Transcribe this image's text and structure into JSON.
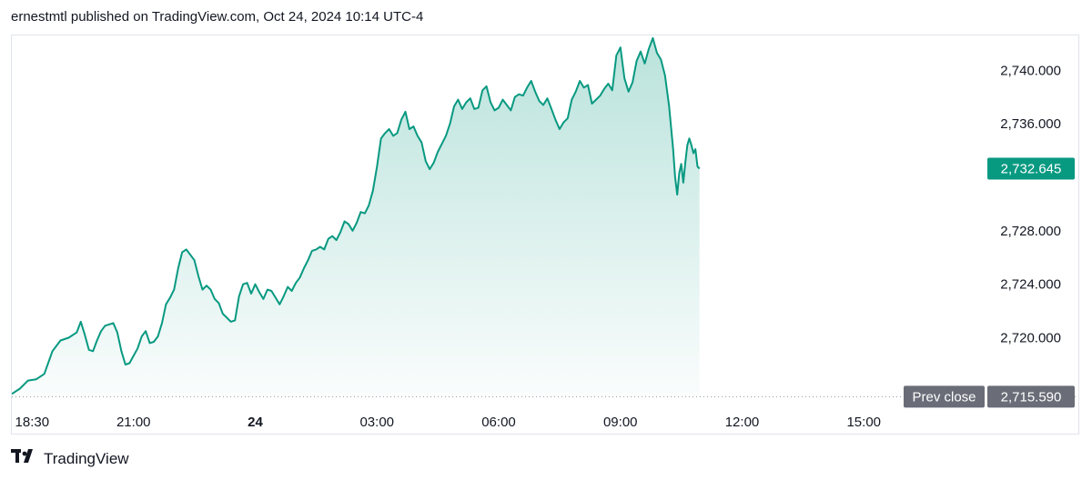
{
  "header": {
    "published_text": "ernestmtl published on TradingView.com, Oct 24, 2024 10:14 UTC-4"
  },
  "footer": {
    "brand": "TradingView",
    "logo_icon": "tradingview-logo-icon"
  },
  "colors": {
    "line": "#089981",
    "fill_top": "#089981",
    "badge_current": "#089981",
    "badge_prev": "#6a6d78",
    "dotted": "#9598a1",
    "border": "#e0e3eb"
  },
  "chart_data": {
    "type": "area",
    "title": "",
    "xlabel": "",
    "ylabel": "",
    "x_range": [
      18.0,
      42.0
    ],
    "ylim": [
      2714.6,
      2742.6
    ],
    "y_ticks": [
      {
        "value": 2720,
        "label": "2,720.000"
      },
      {
        "value": 2724,
        "label": "2,724.000"
      },
      {
        "value": 2728,
        "label": "2,728.000"
      },
      {
        "value": 2736,
        "label": "2,736.000"
      },
      {
        "value": 2740,
        "label": "2,740.000"
      }
    ],
    "x_ticks": [
      {
        "value": 18.5,
        "label": "18:30",
        "bold": false
      },
      {
        "value": 21.0,
        "label": "21:00",
        "bold": false
      },
      {
        "value": 24.0,
        "label": "24",
        "bold": true
      },
      {
        "value": 27.0,
        "label": "03:00",
        "bold": false
      },
      {
        "value": 30.0,
        "label": "06:00",
        "bold": false
      },
      {
        "value": 33.0,
        "label": "09:00",
        "bold": false
      },
      {
        "value": 36.0,
        "label": "12:00",
        "bold": false
      },
      {
        "value": 39.0,
        "label": "15:00",
        "bold": false
      }
    ],
    "current_price": {
      "value": 2732.645,
      "label": "2,732.645"
    },
    "prev_close": {
      "value": 2715.59,
      "label": "2,715.590",
      "name": "Prev close"
    },
    "grid": false,
    "series": [
      {
        "points": [
          [
            18.0,
            2715.8
          ],
          [
            18.2,
            2716.2
          ],
          [
            18.4,
            2716.8
          ],
          [
            18.6,
            2716.9
          ],
          [
            18.8,
            2717.3
          ],
          [
            19.0,
            2719.0
          ],
          [
            19.2,
            2719.8
          ],
          [
            19.4,
            2720.0
          ],
          [
            19.6,
            2720.4
          ],
          [
            19.7,
            2721.2
          ],
          [
            19.8,
            2720.2
          ],
          [
            19.9,
            2719.1
          ],
          [
            20.0,
            2719.0
          ],
          [
            20.1,
            2719.8
          ],
          [
            20.2,
            2720.5
          ],
          [
            20.3,
            2720.9
          ],
          [
            20.5,
            2721.1
          ],
          [
            20.6,
            2720.4
          ],
          [
            20.7,
            2719.0
          ],
          [
            20.8,
            2718.0
          ],
          [
            20.9,
            2718.1
          ],
          [
            21.1,
            2719.2
          ],
          [
            21.2,
            2720.1
          ],
          [
            21.3,
            2720.5
          ],
          [
            21.4,
            2719.6
          ],
          [
            21.5,
            2719.7
          ],
          [
            21.6,
            2720.1
          ],
          [
            21.7,
            2721.1
          ],
          [
            21.8,
            2722.5
          ],
          [
            21.9,
            2723.0
          ],
          [
            22.0,
            2723.6
          ],
          [
            22.1,
            2725.2
          ],
          [
            22.2,
            2726.4
          ],
          [
            22.3,
            2726.6
          ],
          [
            22.4,
            2726.2
          ],
          [
            22.5,
            2725.8
          ],
          [
            22.6,
            2724.6
          ],
          [
            22.7,
            2723.6
          ],
          [
            22.8,
            2723.9
          ],
          [
            22.9,
            2723.6
          ],
          [
            23.0,
            2722.9
          ],
          [
            23.1,
            2722.6
          ],
          [
            23.2,
            2721.8
          ],
          [
            23.3,
            2721.5
          ],
          [
            23.4,
            2721.2
          ],
          [
            23.5,
            2721.3
          ],
          [
            23.6,
            2723.1
          ],
          [
            23.7,
            2724.0
          ],
          [
            23.8,
            2724.1
          ],
          [
            23.9,
            2723.3
          ],
          [
            24.0,
            2724.0
          ],
          [
            24.1,
            2723.4
          ],
          [
            24.2,
            2722.9
          ],
          [
            24.3,
            2723.6
          ],
          [
            24.4,
            2723.5
          ],
          [
            24.5,
            2723.0
          ],
          [
            24.6,
            2722.5
          ],
          [
            24.7,
            2723.1
          ],
          [
            24.8,
            2723.8
          ],
          [
            24.9,
            2723.5
          ],
          [
            25.0,
            2724.1
          ],
          [
            25.1,
            2724.5
          ],
          [
            25.2,
            2725.2
          ],
          [
            25.3,
            2725.8
          ],
          [
            25.4,
            2726.5
          ],
          [
            25.5,
            2726.6
          ],
          [
            25.6,
            2726.8
          ],
          [
            25.7,
            2726.6
          ],
          [
            25.8,
            2727.4
          ],
          [
            25.9,
            2727.6
          ],
          [
            26.0,
            2727.3
          ],
          [
            26.1,
            2727.9
          ],
          [
            26.2,
            2728.7
          ],
          [
            26.3,
            2728.5
          ],
          [
            26.4,
            2728.0
          ],
          [
            26.5,
            2728.6
          ],
          [
            26.6,
            2729.4
          ],
          [
            26.7,
            2729.3
          ],
          [
            26.8,
            2729.9
          ],
          [
            26.9,
            2731.0
          ],
          [
            27.0,
            2732.8
          ],
          [
            27.1,
            2734.9
          ],
          [
            27.2,
            2735.3
          ],
          [
            27.3,
            2735.6
          ],
          [
            27.4,
            2735.1
          ],
          [
            27.5,
            2735.3
          ],
          [
            27.6,
            2736.3
          ],
          [
            27.7,
            2736.9
          ],
          [
            27.8,
            2735.6
          ],
          [
            27.9,
            2735.8
          ],
          [
            28.0,
            2735.1
          ],
          [
            28.1,
            2734.6
          ],
          [
            28.2,
            2733.2
          ],
          [
            28.3,
            2732.6
          ],
          [
            28.4,
            2733.1
          ],
          [
            28.5,
            2733.9
          ],
          [
            28.6,
            2734.5
          ],
          [
            28.7,
            2735.1
          ],
          [
            28.8,
            2736.0
          ],
          [
            28.9,
            2737.3
          ],
          [
            29.0,
            2737.8
          ],
          [
            29.1,
            2737.1
          ],
          [
            29.2,
            2737.6
          ],
          [
            29.3,
            2737.9
          ],
          [
            29.4,
            2737.1
          ],
          [
            29.5,
            2737.2
          ],
          [
            29.6,
            2738.5
          ],
          [
            29.7,
            2738.8
          ],
          [
            29.8,
            2737.6
          ],
          [
            29.9,
            2737.0
          ],
          [
            30.0,
            2737.2
          ],
          [
            30.1,
            2737.8
          ],
          [
            30.2,
            2737.4
          ],
          [
            30.3,
            2737.0
          ],
          [
            30.4,
            2738.0
          ],
          [
            30.5,
            2738.2
          ],
          [
            30.6,
            2738.1
          ],
          [
            30.7,
            2738.7
          ],
          [
            30.8,
            2739.2
          ],
          [
            30.9,
            2738.4
          ],
          [
            31.0,
            2737.7
          ],
          [
            31.1,
            2737.4
          ],
          [
            31.2,
            2737.9
          ],
          [
            31.3,
            2737.1
          ],
          [
            31.4,
            2736.3
          ],
          [
            31.5,
            2735.6
          ],
          [
            31.6,
            2736.1
          ],
          [
            31.7,
            2736.4
          ],
          [
            31.8,
            2737.8
          ],
          [
            31.9,
            2738.4
          ],
          [
            32.0,
            2739.2
          ],
          [
            32.1,
            2738.7
          ],
          [
            32.2,
            2738.9
          ],
          [
            32.3,
            2737.5
          ],
          [
            32.4,
            2737.8
          ],
          [
            32.5,
            2738.1
          ],
          [
            32.6,
            2738.6
          ],
          [
            32.7,
            2739.0
          ],
          [
            32.8,
            2738.5
          ],
          [
            32.9,
            2741.1
          ],
          [
            33.0,
            2741.7
          ],
          [
            33.1,
            2739.4
          ],
          [
            33.2,
            2738.4
          ],
          [
            33.3,
            2739.1
          ],
          [
            33.4,
            2740.7
          ],
          [
            33.5,
            2741.4
          ],
          [
            33.6,
            2740.5
          ],
          [
            33.7,
            2741.6
          ],
          [
            33.8,
            2742.4
          ],
          [
            33.9,
            2741.3
          ],
          [
            34.0,
            2740.8
          ],
          [
            34.1,
            2739.6
          ],
          [
            34.2,
            2737.3
          ],
          [
            34.3,
            2734.1
          ],
          [
            34.35,
            2732.0
          ],
          [
            34.4,
            2730.7
          ],
          [
            34.45,
            2732.3
          ],
          [
            34.5,
            2733.0
          ],
          [
            34.55,
            2731.6
          ],
          [
            34.6,
            2733.1
          ],
          [
            34.65,
            2734.4
          ],
          [
            34.7,
            2734.9
          ],
          [
            34.75,
            2734.4
          ],
          [
            34.8,
            2733.8
          ],
          [
            34.85,
            2734.1
          ],
          [
            34.9,
            2732.8
          ],
          [
            34.95,
            2732.645
          ]
        ]
      }
    ]
  }
}
